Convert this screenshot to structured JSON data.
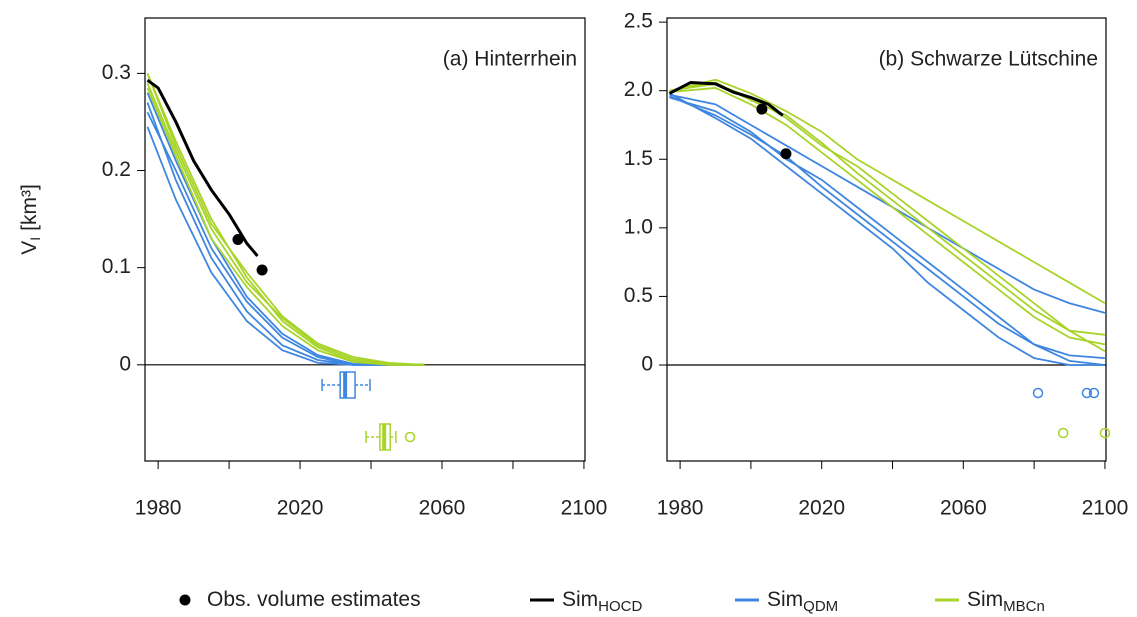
{
  "chart_data": [
    {
      "type": "line",
      "title": "(a) Hinterrhein",
      "ylabel": "V",
      "ylabel_sub": "I",
      "ylabel_unit": "[km³]",
      "xlim": [
        1976.3,
        2100.3
      ],
      "ylim": [
        -0.099,
        0.357
      ],
      "xticks": [
        1980,
        2020,
        2060,
        2100
      ],
      "xminor": [
        2000,
        2040,
        2080
      ],
      "yticks": [
        0,
        0.1,
        0.2,
        0.3
      ],
      "x": [
        1977,
        1985,
        1995,
        2005,
        2015,
        2025,
        2035,
        2045,
        2055
      ],
      "series": [
        {
          "color": "#3f86e0",
          "values": [
            0.27,
            0.19,
            0.11,
            0.055,
            0.02,
            0.005,
            0,
            0,
            0
          ]
        },
        {
          "color": "#3f86e0",
          "values": [
            0.26,
            0.2,
            0.12,
            0.065,
            0.028,
            0.008,
            0,
            0,
            0
          ]
        },
        {
          "color": "#3f86e0",
          "values": [
            0.245,
            0.17,
            0.095,
            0.045,
            0.015,
            0.002,
            0,
            0,
            0
          ]
        },
        {
          "color": "#3f86e0",
          "values": [
            0.28,
            0.21,
            0.13,
            0.07,
            0.032,
            0.01,
            0.001,
            0,
            0
          ]
        },
        {
          "color": "#a8d42a",
          "values": [
            0.3,
            0.23,
            0.15,
            0.09,
            0.045,
            0.018,
            0.004,
            0,
            0
          ]
        },
        {
          "color": "#a8d42a",
          "values": [
            0.29,
            0.22,
            0.14,
            0.085,
            0.048,
            0.02,
            0.006,
            0.001,
            0
          ]
        },
        {
          "color": "#a8d42a",
          "values": [
            0.3,
            0.225,
            0.145,
            0.095,
            0.05,
            0.022,
            0.008,
            0.002,
            0
          ]
        },
        {
          "color": "#a8d42a",
          "values": [
            0.285,
            0.215,
            0.13,
            0.08,
            0.04,
            0.015,
            0.003,
            0,
            0
          ]
        },
        {
          "color": "#000000",
          "x": [
            1977,
            1980,
            1985,
            1990,
            1995,
            2000,
            2005,
            2008
          ],
          "values": [
            0.293,
            0.285,
            0.25,
            0.21,
            0.18,
            0.155,
            0.125,
            0.112
          ]
        }
      ],
      "obs": {
        "x": [
          2002.5,
          2009.3
        ],
        "values": [
          0.129,
          0.0976
        ]
      },
      "boxes": [
        {
          "color": "#3f86e0",
          "whisker_low": 2026.2,
          "q1": 2031.3,
          "median": 2032.7,
          "q3": 2035.5,
          "whisker_high": 2039.7
        },
        {
          "color": "#a8d42a",
          "whisker_low": 2038.6,
          "q1": 2042.5,
          "median": 2043.7,
          "q3": 2045.4,
          "whisker_high": 2047,
          "outliers": [
            2051
          ]
        }
      ]
    },
    {
      "type": "line",
      "title": "(b) Schwarze Lütschine",
      "xlim": [
        1976.3,
        2100.3
      ],
      "ylim": [
        -0.7,
        2.53
      ],
      "xticks": [
        1980,
        2020,
        2060,
        2100
      ],
      "xminor": [
        2000,
        2040,
        2080
      ],
      "yticks": [
        0,
        0.5,
        {
          "value": 1,
          "label": "1.0"
        },
        1.5,
        {
          "value": 2,
          "label": "2.0"
        },
        2.5
      ],
      "x": [
        1977,
        1990,
        2000,
        2010,
        2020,
        2030,
        2040,
        2050,
        2060,
        2070,
        2080,
        2090,
        2100
      ],
      "series": [
        {
          "color": "#3f86e0",
          "values": [
            1.98,
            1.8,
            1.65,
            1.45,
            1.25,
            1.05,
            0.85,
            0.6,
            0.4,
            0.2,
            0.05,
            0,
            0
          ]
        },
        {
          "color": "#3f86e0",
          "values": [
            1.95,
            1.85,
            1.7,
            1.5,
            1.35,
            1.15,
            0.95,
            0.75,
            0.55,
            0.35,
            0.15,
            0.03,
            0
          ]
        },
        {
          "color": "#3f86e0",
          "values": [
            1.97,
            1.9,
            1.75,
            1.6,
            1.45,
            1.3,
            1.15,
            1.0,
            0.85,
            0.7,
            0.55,
            0.45,
            0.38
          ]
        },
        {
          "color": "#3f86e0",
          "values": [
            1.96,
            1.82,
            1.68,
            1.52,
            1.3,
            1.1,
            0.9,
            0.7,
            0.5,
            0.3,
            0.15,
            0.07,
            0.05
          ]
        },
        {
          "color": "#a8d42a",
          "values": [
            2.0,
            2.05,
            1.95,
            1.8,
            1.6,
            1.45,
            1.25,
            1.05,
            0.85,
            0.65,
            0.45,
            0.25,
            0.1
          ]
        },
        {
          "color": "#a8d42a",
          "values": [
            2.0,
            2.08,
            1.98,
            1.85,
            1.7,
            1.5,
            1.35,
            1.2,
            1.05,
            0.9,
            0.75,
            0.6,
            0.45
          ]
        },
        {
          "color": "#a8d42a",
          "values": [
            1.99,
            2.02,
            1.9,
            1.75,
            1.55,
            1.35,
            1.15,
            0.95,
            0.75,
            0.55,
            0.35,
            0.2,
            0.15
          ]
        },
        {
          "color": "#a8d42a",
          "values": [
            2.0,
            2.06,
            1.93,
            1.82,
            1.62,
            1.4,
            1.2,
            1.0,
            0.8,
            0.6,
            0.4,
            0.25,
            0.22
          ]
        },
        {
          "color": "#000000",
          "x": [
            1977,
            1980,
            1983,
            1990,
            1995,
            2000,
            2005,
            2009
          ],
          "values": [
            1.98,
            2.02,
            2.06,
            2.05,
            1.99,
            1.95,
            1.9,
            1.82
          ]
        }
      ],
      "obs": {
        "x": [
          2003.1,
          2009.9
        ],
        "values": [
          1.866,
          1.54
        ]
      },
      "boxes": [
        {
          "color": "#3f86e0",
          "outliers": [
            2081.1,
            2094.9,
            2096.9
          ]
        },
        {
          "color": "#a8d42a",
          "outliers": [
            2088.2,
            2100
          ]
        }
      ]
    }
  ],
  "legend": [
    {
      "name": "Obs. volume estimates",
      "color": "#000000",
      "marker": "point"
    },
    {
      "name": "Sim",
      "sub": "HOCD",
      "color": "#000000",
      "marker": "line"
    },
    {
      "name": "Sim",
      "sub": "QDM",
      "color": "#3f86e0",
      "marker": "line"
    },
    {
      "name": "Sim",
      "sub": "MBCn",
      "color": "#a8d42a",
      "marker": "line"
    }
  ]
}
